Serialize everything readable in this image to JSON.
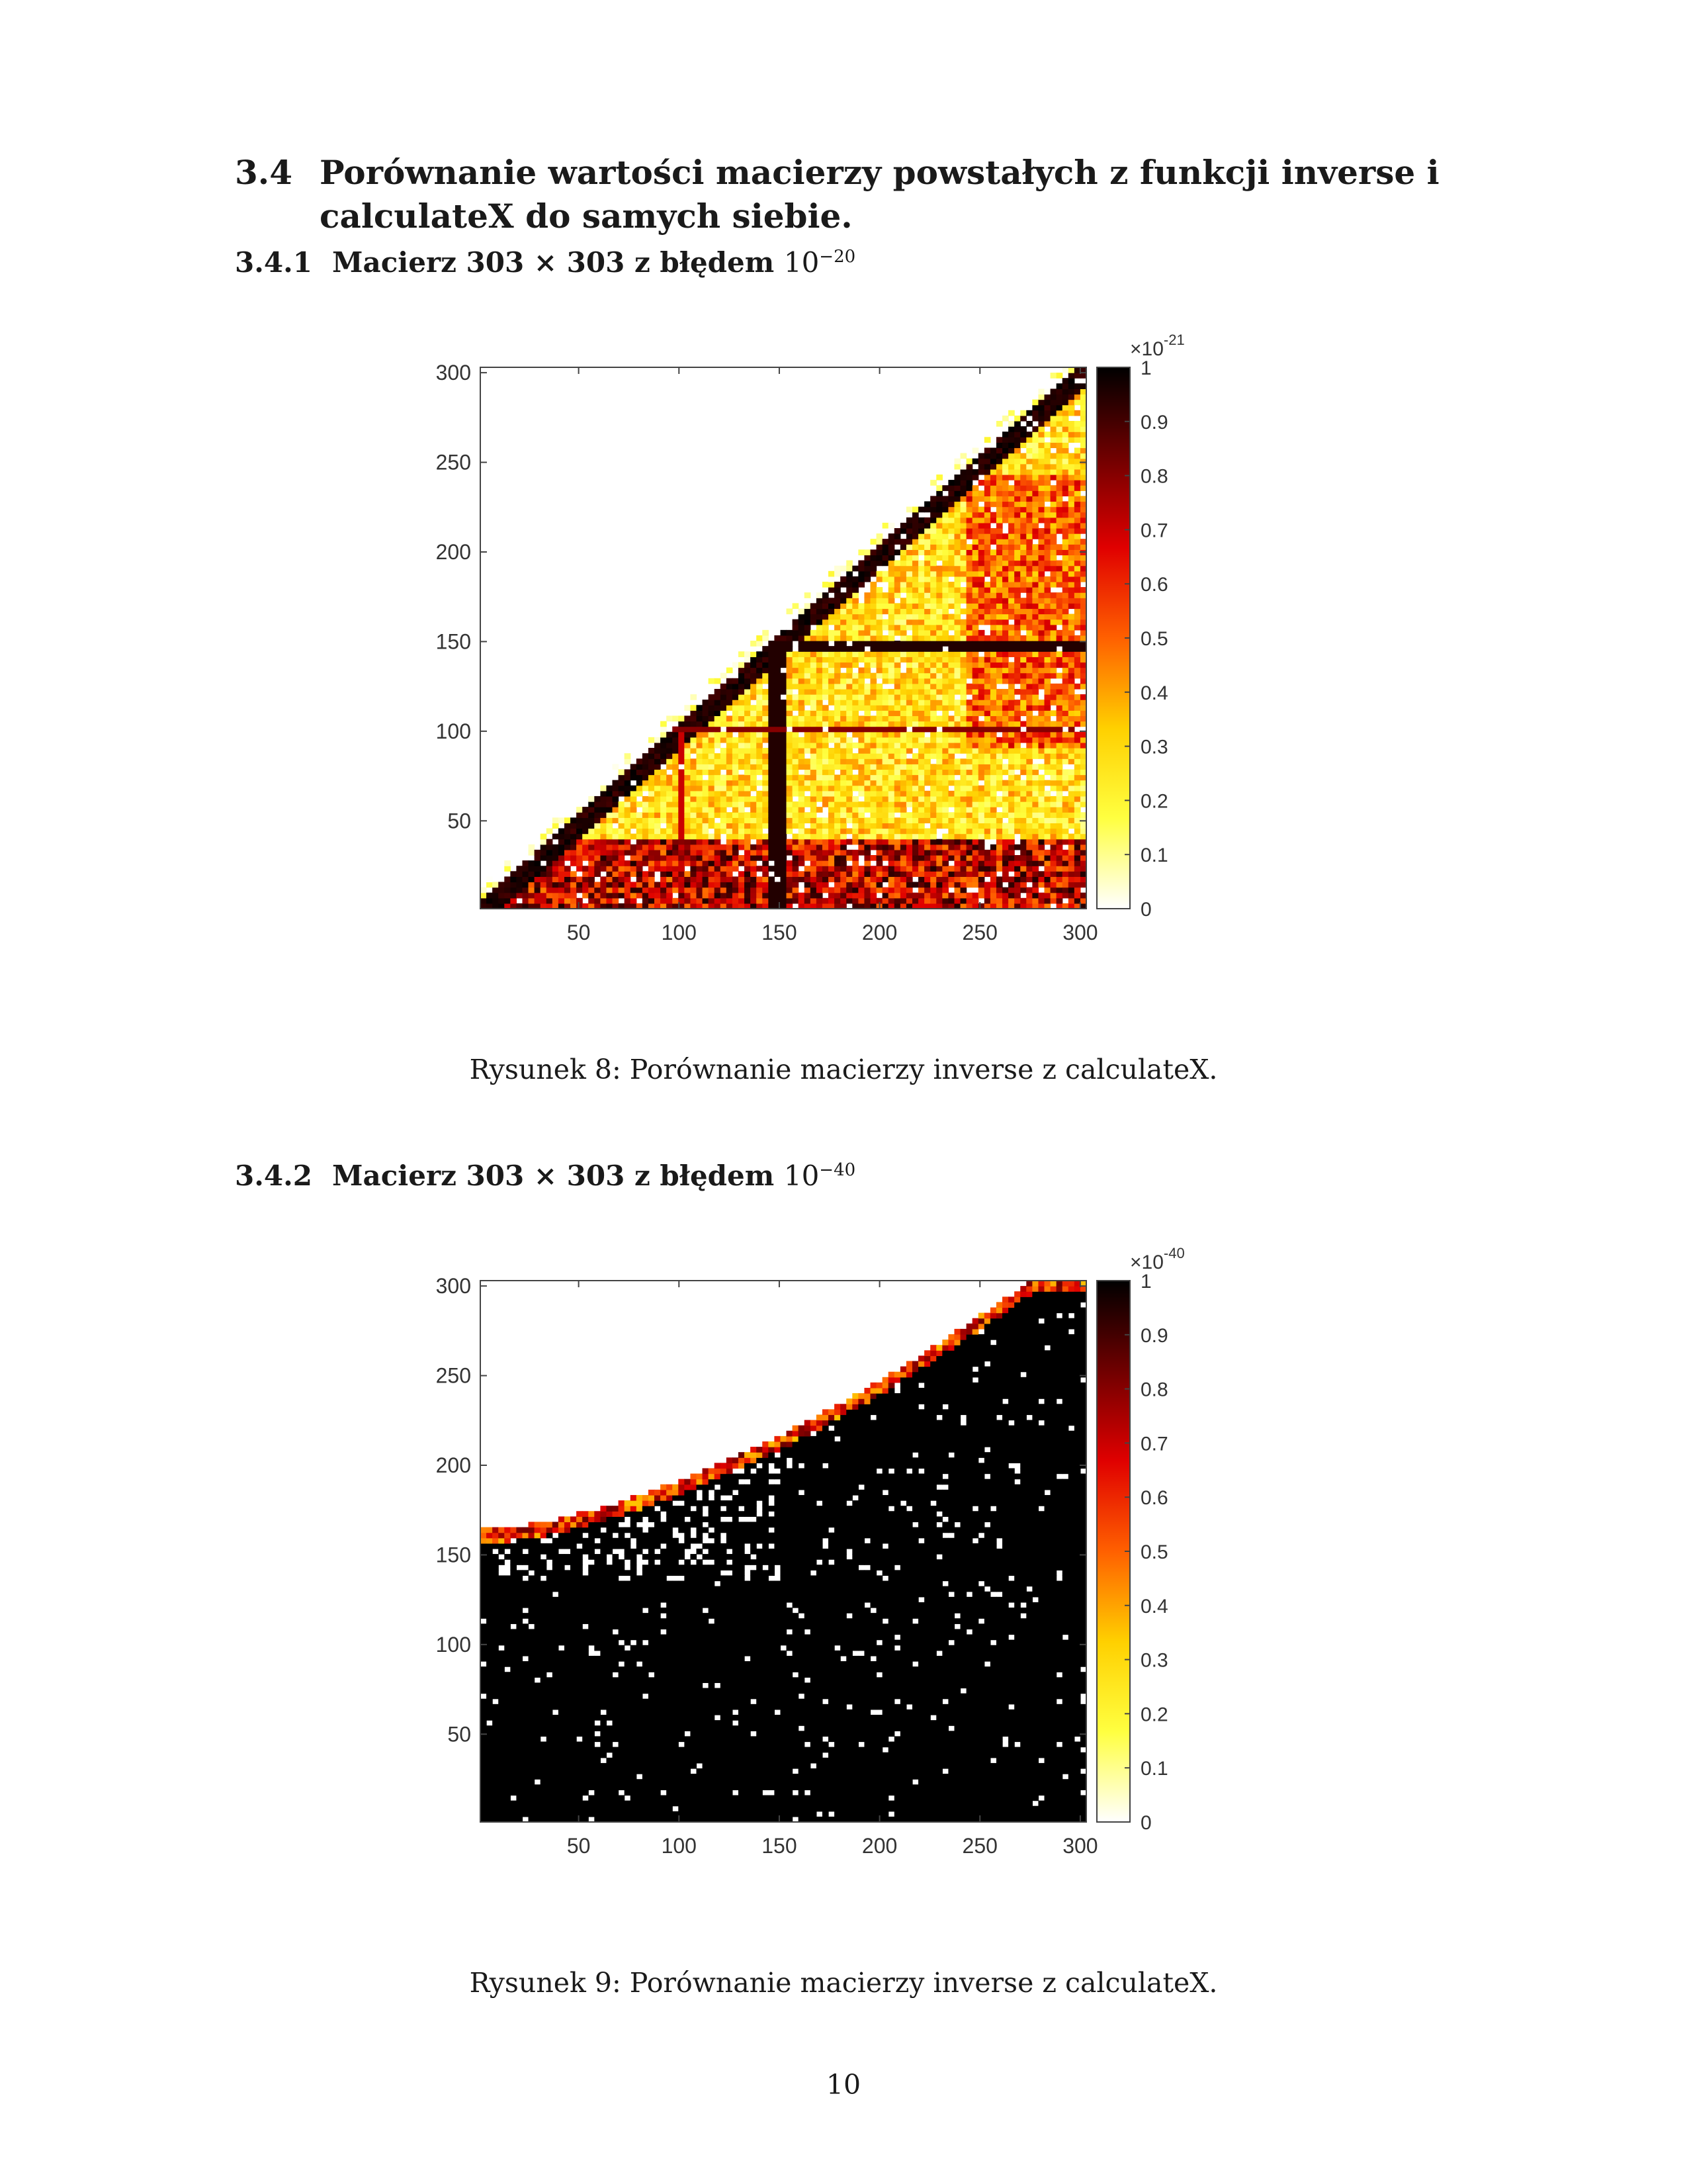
{
  "section": {
    "number": "3.4",
    "title": "Porównanie wartości macierzy powstałych z funkcji inverse i calculateX do samych siebie."
  },
  "subsections": [
    {
      "number": "3.4.1",
      "title": "Macierz 303 × 303 z błędem",
      "power_base": "10",
      "power_exp": "−20"
    },
    {
      "number": "3.4.2",
      "title": "Macierz 303 × 303 z błędem",
      "power_base": "10",
      "power_exp": "−40"
    }
  ],
  "figures": [
    {
      "caption": "Rysunek 8: Porównanie macierzy inverse z calculateX."
    },
    {
      "caption": "Rysunek 9: Porównanie macierzy inverse z calculateX."
    }
  ],
  "page_number": "10",
  "chart_data": [
    {
      "type": "heatmap",
      "colormap": "hot (reversed)",
      "colormap_colors": [
        "#000000",
        "#700000",
        "#e00000",
        "#ff6000",
        "#ffd000",
        "#ffff40",
        "#ffffff"
      ],
      "xlim": [
        1,
        303
      ],
      "ylim": [
        1,
        303
      ],
      "x_ticks": [
        "50",
        "100",
        "150",
        "200",
        "250",
        "300"
      ],
      "y_ticks": [
        "50",
        "100",
        "150",
        "200",
        "250",
        "300"
      ],
      "colorbar": {
        "range": [
          0,
          1
        ],
        "ticks": [
          "0",
          "0.1",
          "0.2",
          "0.3",
          "0.4",
          "0.5",
          "0.6",
          "0.7",
          "0.8",
          "0.9",
          "1"
        ],
        "multiplier_base": "×10",
        "multiplier_exp": "-21"
      },
      "pattern": "lower-right triangle below diagonal y = x; dark diagonal band; strong dark lines near x ≈ 148 and y ≈ 148; lighter interior"
    },
    {
      "type": "heatmap",
      "colormap": "hot (reversed)",
      "colormap_colors": [
        "#000000",
        "#700000",
        "#e00000",
        "#ff6000",
        "#ffd000",
        "#ffff40",
        "#ffffff"
      ],
      "xlim": [
        1,
        303
      ],
      "ylim": [
        1,
        303
      ],
      "x_ticks": [
        "50",
        "100",
        "150",
        "200",
        "250",
        "300"
      ],
      "y_ticks": [
        "50",
        "100",
        "150",
        "200",
        "250",
        "300"
      ],
      "colorbar": {
        "range": [
          0,
          1
        ],
        "ticks": [
          "0",
          "0.1",
          "0.2",
          "0.3",
          "0.4",
          "0.5",
          "0.6",
          "0.7",
          "0.8",
          "0.9",
          "1"
        ],
        "multiplier_base": "×10",
        "multiplier_exp": "-40"
      },
      "pattern": "mostly saturated (dark) region below a convex boundary from y ≈ 160 at x = 1 to y ≈ 303 at x ≈ 280; white above; sparse white speckles inside"
    }
  ]
}
